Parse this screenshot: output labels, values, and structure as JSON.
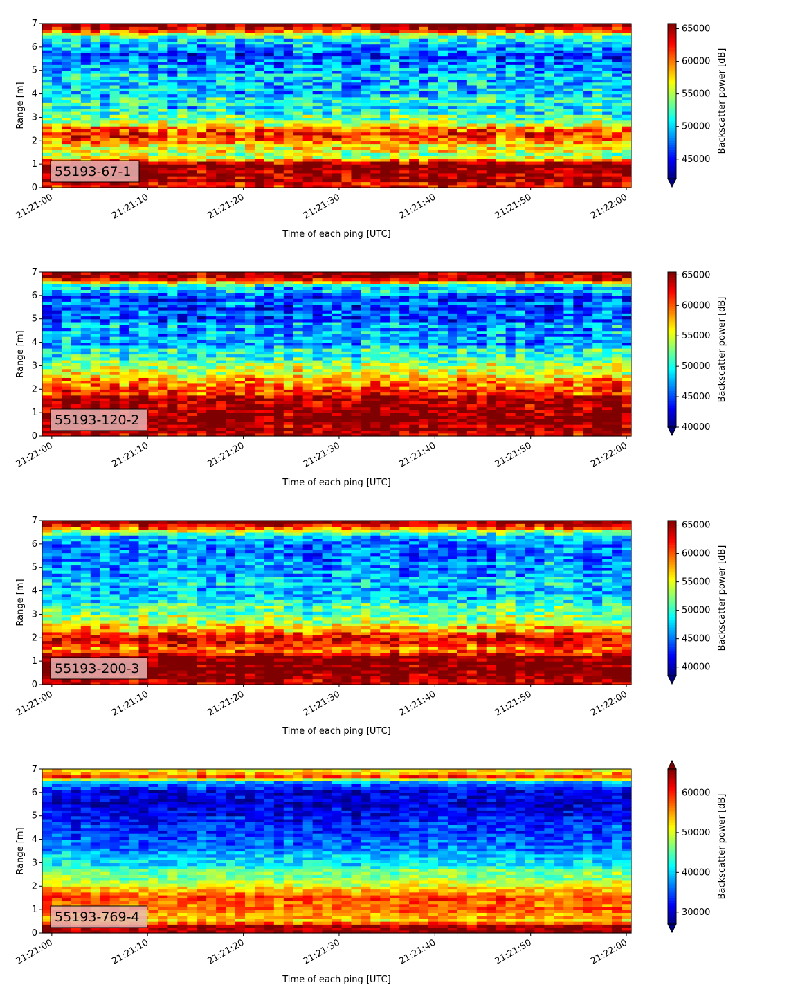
{
  "colormap": [
    "#00007f",
    "#0000ff",
    "#007fff",
    "#00ffff",
    "#7fff7f",
    "#ffff00",
    "#ff7f00",
    "#ff0000",
    "#7f0000"
  ],
  "label_box_color": "#e8b4b4",
  "chart_data": [
    {
      "type": "heatmap",
      "label": "55193-67-1",
      "xlabel": "Time of each ping [UTC]",
      "ylabel": "Range [m]",
      "x_ticks": [
        "21:21:00",
        "21:21:10",
        "21:21:20",
        "21:21:30",
        "21:21:40",
        "21:21:50",
        "21:22:00"
      ],
      "y_ticks": [
        "0",
        "1",
        "2",
        "3",
        "4",
        "5",
        "6",
        "7"
      ],
      "xlim": [
        "21:20:59",
        "21:22:00.5"
      ],
      "ylim": [
        0,
        7
      ],
      "colorbar_label": "Backscatter power [dB]",
      "colorbar_ticks": [
        "45000",
        "50000",
        "55000",
        "60000",
        "65000"
      ],
      "colorbar_range": [
        42000,
        65800
      ],
      "colorbar_extend": "min",
      "range_profile": [
        {
          "range": 0.1,
          "value": 64000
        },
        {
          "range": 0.5,
          "value": 66000
        },
        {
          "range": 1.0,
          "value": 66000
        },
        {
          "range": 1.3,
          "value": 57000
        },
        {
          "range": 1.6,
          "value": 55000
        },
        {
          "range": 2.0,
          "value": 60000
        },
        {
          "range": 2.3,
          "value": 63000
        },
        {
          "range": 2.6,
          "value": 58000
        },
        {
          "range": 3.0,
          "value": 53000
        },
        {
          "range": 3.5,
          "value": 51000
        },
        {
          "range": 4.0,
          "value": 50000
        },
        {
          "range": 4.5,
          "value": 50000
        },
        {
          "range": 5.0,
          "value": 49000
        },
        {
          "range": 5.5,
          "value": 48000
        },
        {
          "range": 6.0,
          "value": 47000
        },
        {
          "range": 6.4,
          "value": 52000
        },
        {
          "range": 6.7,
          "value": 61000
        },
        {
          "range": 7.0,
          "value": 66000
        }
      ]
    },
    {
      "type": "heatmap",
      "label": "55193-120-2",
      "xlabel": "Time of each ping [UTC]",
      "ylabel": "Range [m]",
      "x_ticks": [
        "21:21:00",
        "21:21:10",
        "21:21:20",
        "21:21:30",
        "21:21:40",
        "21:21:50",
        "21:22:00"
      ],
      "y_ticks": [
        "0",
        "1",
        "2",
        "3",
        "4",
        "5",
        "6",
        "7"
      ],
      "xlim": [
        "21:20:59",
        "21:22:00.5"
      ],
      "ylim": [
        0,
        7
      ],
      "colorbar_label": "Backscatter power [dB]",
      "colorbar_ticks": [
        "40000",
        "45000",
        "50000",
        "55000",
        "60000",
        "65000"
      ],
      "colorbar_range": [
        40000,
        65500
      ],
      "colorbar_extend": "min",
      "range_profile": [
        {
          "range": 0.1,
          "value": 64000
        },
        {
          "range": 0.5,
          "value": 66000
        },
        {
          "range": 1.5,
          "value": 66000
        },
        {
          "range": 1.8,
          "value": 62000
        },
        {
          "range": 2.2,
          "value": 60000
        },
        {
          "range": 2.6,
          "value": 56000
        },
        {
          "range": 3.0,
          "value": 55000
        },
        {
          "range": 3.5,
          "value": 50000
        },
        {
          "range": 4.0,
          "value": 48000
        },
        {
          "range": 4.5,
          "value": 47000
        },
        {
          "range": 5.0,
          "value": 46000
        },
        {
          "range": 5.5,
          "value": 45000
        },
        {
          "range": 6.0,
          "value": 46000
        },
        {
          "range": 6.4,
          "value": 50000
        },
        {
          "range": 6.7,
          "value": 62000
        },
        {
          "range": 7.0,
          "value": 66000
        }
      ]
    },
    {
      "type": "heatmap",
      "label": "55193-200-3",
      "xlabel": "Time of each ping [UTC]",
      "ylabel": "Range [m]",
      "x_ticks": [
        "21:21:00",
        "21:21:10",
        "21:21:20",
        "21:21:30",
        "21:21:40",
        "21:21:50",
        "21:22:00"
      ],
      "y_ticks": [
        "0",
        "1",
        "2",
        "3",
        "4",
        "5",
        "6",
        "7"
      ],
      "xlim": [
        "21:20:59",
        "21:22:00.5"
      ],
      "ylim": [
        0,
        7
      ],
      "colorbar_label": "Backscatter power [dB]",
      "colorbar_ticks": [
        "40000",
        "45000",
        "50000",
        "55000",
        "60000",
        "65000"
      ],
      "colorbar_range": [
        38500,
        65800
      ],
      "colorbar_extend": "min",
      "range_profile": [
        {
          "range": 0.1,
          "value": 64000
        },
        {
          "range": 0.5,
          "value": 66000
        },
        {
          "range": 1.2,
          "value": 66000
        },
        {
          "range": 1.5,
          "value": 59000
        },
        {
          "range": 2.0,
          "value": 62000
        },
        {
          "range": 2.4,
          "value": 57000
        },
        {
          "range": 3.0,
          "value": 52000
        },
        {
          "range": 3.5,
          "value": 49000
        },
        {
          "range": 4.0,
          "value": 48000
        },
        {
          "range": 4.5,
          "value": 47000
        },
        {
          "range": 5.0,
          "value": 46000
        },
        {
          "range": 5.5,
          "value": 45000
        },
        {
          "range": 6.0,
          "value": 45000
        },
        {
          "range": 6.4,
          "value": 49000
        },
        {
          "range": 6.7,
          "value": 61000
        },
        {
          "range": 7.0,
          "value": 66000
        }
      ]
    },
    {
      "type": "heatmap",
      "label": "55193-769-4",
      "xlabel": "Time of each ping [UTC]",
      "ylabel": "Range [m]",
      "x_ticks": [
        "21:21:00",
        "21:21:10",
        "21:21:20",
        "21:21:30",
        "21:21:40",
        "21:21:50",
        "21:22:00"
      ],
      "y_ticks": [
        "0",
        "1",
        "2",
        "3",
        "4",
        "5",
        "6",
        "7"
      ],
      "xlim": [
        "21:20:59",
        "21:22:00.5"
      ],
      "ylim": [
        0,
        7
      ],
      "colorbar_label": "Backscatter power [dB]",
      "colorbar_ticks": [
        "30000",
        "40000",
        "50000",
        "60000"
      ],
      "colorbar_range": [
        27000,
        66000
      ],
      "colorbar_extend": "both",
      "range_profile": [
        {
          "range": 0.1,
          "value": 64000
        },
        {
          "range": 0.3,
          "value": 66000
        },
        {
          "range": 0.5,
          "value": 52000
        },
        {
          "range": 1.0,
          "value": 58000
        },
        {
          "range": 1.5,
          "value": 59000
        },
        {
          "range": 2.0,
          "value": 52000
        },
        {
          "range": 2.5,
          "value": 46000
        },
        {
          "range": 3.0,
          "value": 42000
        },
        {
          "range": 3.5,
          "value": 38000
        },
        {
          "range": 4.0,
          "value": 35000
        },
        {
          "range": 4.5,
          "value": 33000
        },
        {
          "range": 5.0,
          "value": 32000
        },
        {
          "range": 5.5,
          "value": 31000
        },
        {
          "range": 6.0,
          "value": 30000
        },
        {
          "range": 6.4,
          "value": 36000
        },
        {
          "range": 6.7,
          "value": 58000
        },
        {
          "range": 7.0,
          "value": 52000
        }
      ]
    }
  ]
}
